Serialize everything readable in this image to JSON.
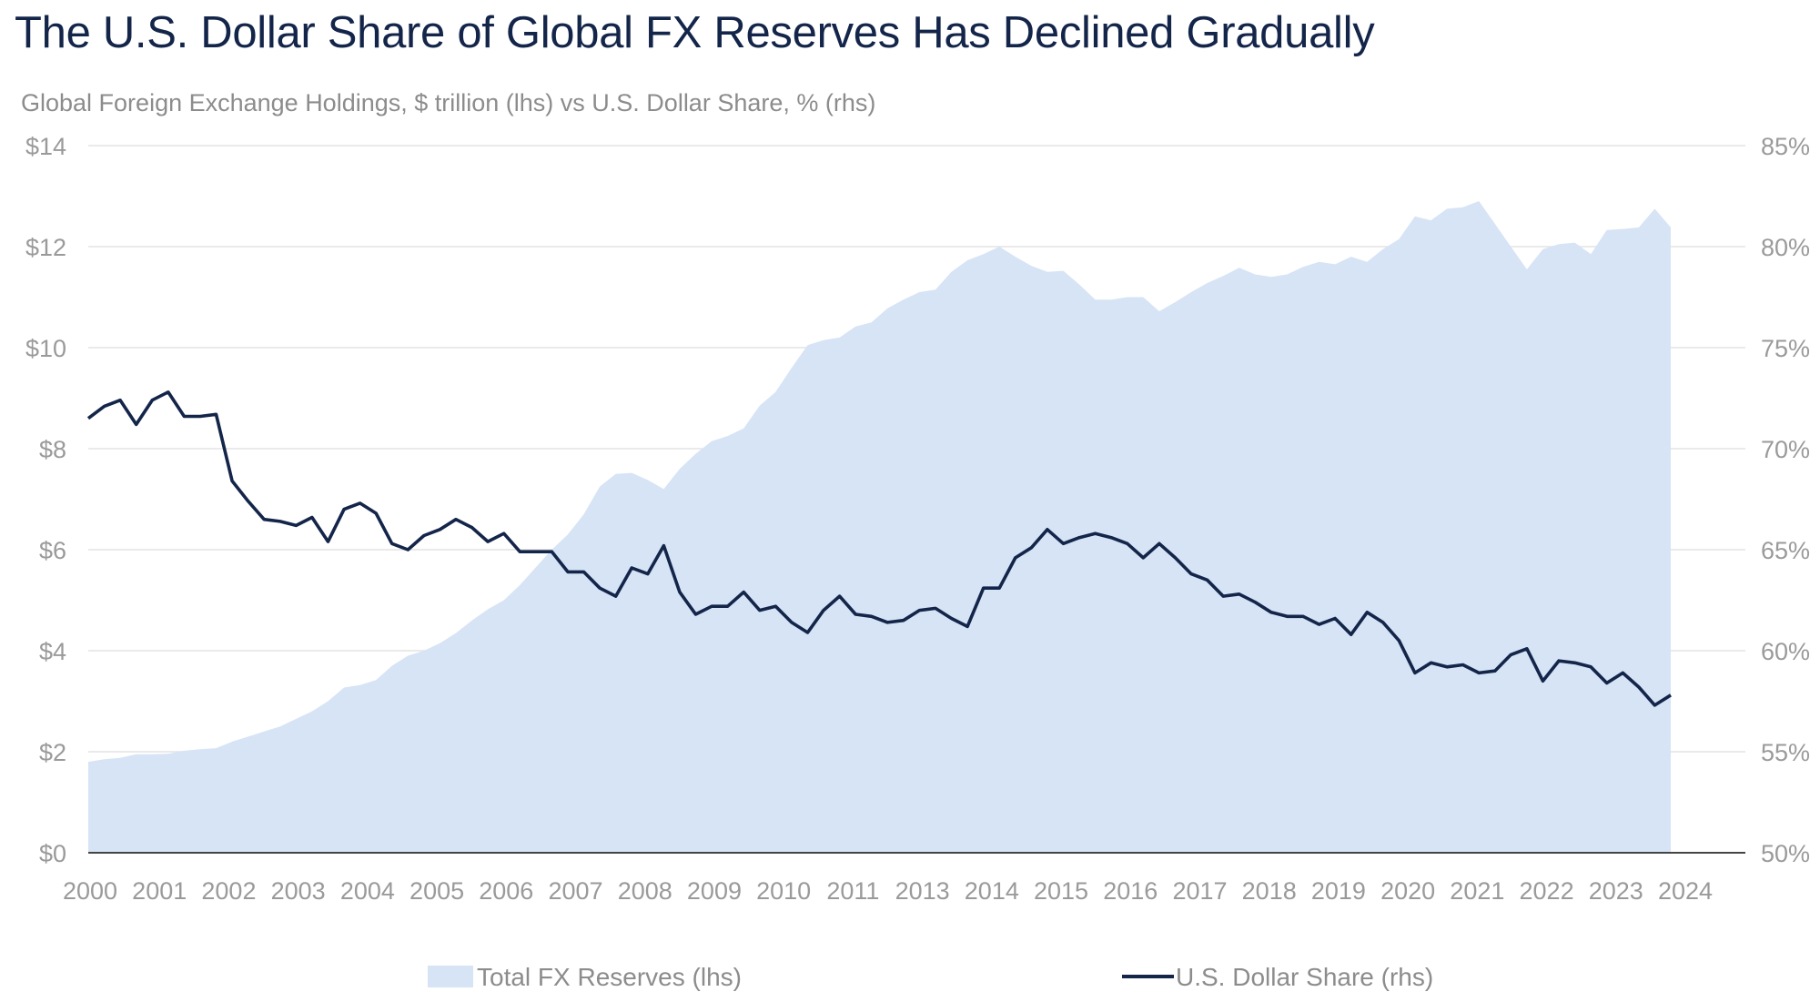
{
  "title": "The U.S. Dollar Share of Global FX Reserves Has Declined Gradually",
  "subtitle": "Global Foreign Exchange Holdings, $ trillion (lhs) vs U.S. Dollar Share, % (rhs)",
  "colors": {
    "area": "#d6e4f5",
    "line": "#14254a",
    "grid": "#e3e3e3",
    "axis": "#444444",
    "text": "#9a9a9a"
  },
  "chart_data": {
    "type": "area+line",
    "x_tick_labels": [
      "2000",
      "2001",
      "2002",
      "2003",
      "2004",
      "2005",
      "2006",
      "2007",
      "2008",
      "2009",
      "2010",
      "2011",
      "2013",
      "2014",
      "2015",
      "2016",
      "2017",
      "2018",
      "2019",
      "2020",
      "2021",
      "2022",
      "2023",
      "2024"
    ],
    "y_left_ticks": [
      "$0",
      "$2",
      "$4",
      "$6",
      "$8",
      "$10",
      "$12",
      "$14"
    ],
    "y_left_range": [
      0,
      14
    ],
    "y_right_ticks": [
      "50%",
      "55%",
      "60%",
      "65%",
      "70%",
      "75%",
      "80%",
      "85%"
    ],
    "y_right_range": [
      50,
      85
    ],
    "grid": "horizontal",
    "legend_position": "bottom",
    "series": [
      {
        "name": "Total FX Reserves (lhs)",
        "type": "area",
        "axis": "left",
        "values": [
          1.8,
          1.85,
          1.88,
          1.95,
          1.95,
          1.96,
          2.02,
          2.05,
          2.07,
          2.2,
          2.3,
          2.4,
          2.5,
          2.65,
          2.8,
          3.0,
          3.27,
          3.32,
          3.42,
          3.7,
          3.9,
          4.0,
          4.15,
          4.35,
          4.6,
          4.82,
          5.0,
          5.3,
          5.65,
          6.0,
          6.3,
          6.7,
          7.25,
          7.5,
          7.52,
          7.38,
          7.2,
          7.6,
          7.9,
          8.15,
          8.25,
          8.4,
          8.85,
          9.12,
          9.6,
          10.05,
          10.15,
          10.2,
          10.42,
          10.5,
          10.78,
          10.95,
          11.1,
          11.15,
          11.5,
          11.73,
          11.85,
          12.0,
          11.8,
          11.62,
          11.5,
          11.52,
          11.25,
          10.95,
          10.95,
          11.0,
          11.0,
          10.72,
          10.9,
          11.1,
          11.28,
          11.42,
          11.58,
          11.45,
          11.4,
          11.45,
          11.6,
          11.7,
          11.65,
          11.8,
          11.7,
          11.95,
          12.15,
          12.6,
          12.52,
          12.75,
          12.78,
          12.9,
          12.45,
          12.0,
          11.55,
          11.95,
          12.05,
          12.08,
          11.85,
          12.33,
          12.35,
          12.38,
          12.75,
          12.38
        ]
      },
      {
        "name": "U.S. Dollar Share (rhs)",
        "type": "line",
        "axis": "right",
        "values": [
          71.5,
          72.1,
          72.4,
          71.2,
          72.4,
          72.8,
          71.6,
          71.6,
          71.7,
          68.4,
          67.4,
          66.5,
          66.4,
          66.2,
          66.6,
          65.4,
          67.0,
          67.3,
          66.8,
          65.3,
          65.0,
          65.7,
          66.0,
          66.5,
          66.1,
          65.4,
          65.8,
          64.9,
          64.9,
          64.9,
          63.9,
          63.9,
          63.1,
          62.7,
          64.1,
          63.8,
          65.2,
          62.9,
          61.8,
          62.2,
          62.2,
          62.9,
          62.0,
          62.2,
          61.4,
          60.9,
          62.0,
          62.7,
          61.8,
          61.7,
          61.4,
          61.5,
          62.0,
          62.1,
          61.6,
          61.2,
          63.1,
          63.1,
          64.6,
          65.1,
          66.0,
          65.3,
          65.6,
          65.8,
          65.6,
          65.3,
          64.6,
          65.3,
          64.6,
          63.8,
          63.5,
          62.7,
          62.8,
          62.4,
          61.9,
          61.7,
          61.7,
          61.3,
          61.6,
          60.8,
          61.9,
          61.4,
          60.5,
          58.9,
          59.4,
          59.2,
          59.3,
          58.9,
          59.0,
          59.8,
          60.1,
          58.5,
          59.5,
          59.4,
          59.2,
          58.4,
          58.9,
          58.2,
          57.3,
          57.8
        ]
      }
    ]
  },
  "legend": {
    "area_label": "Total FX Reserves (lhs)",
    "line_label": "U.S. Dollar Share (rhs)"
  }
}
